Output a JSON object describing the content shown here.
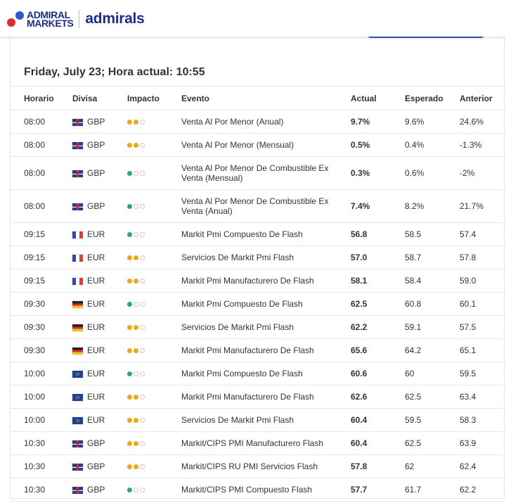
{
  "brand": {
    "logo_line1": "ADMIRAL",
    "logo_line2": "MARKETS",
    "logo_admirals": "admirals",
    "colors": {
      "primary": "#1b2d86",
      "accent_red": "#e12a2b",
      "accent_blue": "#2f55d4"
    }
  },
  "page": {
    "title": "Friday, July 23; Hora actual: 10:55"
  },
  "table": {
    "headers": {
      "time": "Horario",
      "currency": "Divisa",
      "impact": "Impacto",
      "event": "Evento",
      "actual": "Actual",
      "expected": "Esperado",
      "previous": "Anterior"
    },
    "rows": [
      {
        "time": "08:00",
        "flag": "gb",
        "currency": "GBP",
        "impact": {
          "level": 2,
          "color": "orange"
        },
        "event": "Venta Al Por Menor (Anual)",
        "actual": "9.7%",
        "actual_trend": "up",
        "expected": "9.6%",
        "previous": "24.6%"
      },
      {
        "time": "08:00",
        "flag": "gb",
        "currency": "GBP",
        "impact": {
          "level": 2,
          "color": "orange"
        },
        "event": "Venta Al Por Menor (Mensual)",
        "actual": "0.5%",
        "actual_trend": "up",
        "expected": "0.4%",
        "previous": "-1.3%"
      },
      {
        "time": "08:00",
        "flag": "gb",
        "currency": "GBP",
        "impact": {
          "level": 1,
          "color": "green"
        },
        "event": "Venta Al Por Menor De Combustible Ex Venta (Mensual)",
        "actual": "0.3%",
        "actual_trend": "down",
        "expected": "0.6%",
        "previous": "-2%"
      },
      {
        "time": "08:00",
        "flag": "gb",
        "currency": "GBP",
        "impact": {
          "level": 1,
          "color": "green"
        },
        "event": "Venta Al Por Menor De Combustible Ex Venta (Anual)",
        "actual": "7.4%",
        "actual_trend": "down",
        "expected": "8.2%",
        "previous": "21.7%"
      },
      {
        "time": "09:15",
        "flag": "fr",
        "currency": "EUR",
        "impact": {
          "level": 1,
          "color": "green"
        },
        "event": "Markit Pmi Compuesto De Flash",
        "actual": "56.8",
        "actual_trend": "down",
        "expected": "58.5",
        "previous": "57.4"
      },
      {
        "time": "09:15",
        "flag": "fr",
        "currency": "EUR",
        "impact": {
          "level": 2,
          "color": "orange"
        },
        "event": "Servicios De Markit Pmi Flash",
        "actual": "57.0",
        "actual_trend": "down",
        "expected": "58.7",
        "previous": "57.8"
      },
      {
        "time": "09:15",
        "flag": "fr",
        "currency": "EUR",
        "impact": {
          "level": 2,
          "color": "orange"
        },
        "event": "Markit Pmi Manufacturero De Flash",
        "actual": "58.1",
        "actual_trend": "down",
        "expected": "58.4",
        "previous": "59.0"
      },
      {
        "time": "09:30",
        "flag": "de",
        "currency": "EUR",
        "impact": {
          "level": 1,
          "color": "green"
        },
        "event": "Markit Pmi Compuesto De Flash",
        "actual": "62.5",
        "actual_trend": "up",
        "expected": "60.8",
        "previous": "60.1"
      },
      {
        "time": "09:30",
        "flag": "de",
        "currency": "EUR",
        "impact": {
          "level": 2,
          "color": "orange"
        },
        "event": "Servicios De Markit Pmi Flash",
        "actual": "62.2",
        "actual_trend": "up",
        "expected": "59.1",
        "previous": "57.5"
      },
      {
        "time": "09:30",
        "flag": "de",
        "currency": "EUR",
        "impact": {
          "level": 2,
          "color": "orange"
        },
        "event": "Markit Pmi Manufacturero De Flash",
        "actual": "65.6",
        "actual_trend": "up",
        "expected": "64.2",
        "previous": "65.1"
      },
      {
        "time": "10:00",
        "flag": "eu",
        "currency": "EUR",
        "impact": {
          "level": 1,
          "color": "green"
        },
        "event": "Markit Pmi Compuesto De Flash",
        "actual": "60.6",
        "actual_trend": "up",
        "expected": "60",
        "previous": "59.5"
      },
      {
        "time": "10:00",
        "flag": "eu",
        "currency": "EUR",
        "impact": {
          "level": 2,
          "color": "orange"
        },
        "event": "Markit Pmi Manufacturero De Flash",
        "actual": "62.6",
        "actual_trend": "up",
        "expected": "62.5",
        "previous": "63.4"
      },
      {
        "time": "10:00",
        "flag": "eu",
        "currency": "EUR",
        "impact": {
          "level": 2,
          "color": "orange"
        },
        "event": "Servicios De Markit Pmi Flash",
        "actual": "60.4",
        "actual_trend": "up",
        "expected": "59.5",
        "previous": "58.3"
      },
      {
        "time": "10:30",
        "flag": "gb",
        "currency": "GBP",
        "impact": {
          "level": 2,
          "color": "orange"
        },
        "event": "Markit/CIPS PMI Manufacturero Flash",
        "actual": "60.4",
        "actual_trend": "down",
        "expected": "62.5",
        "previous": "63.9"
      },
      {
        "time": "10:30",
        "flag": "gb",
        "currency": "GBP",
        "impact": {
          "level": 2,
          "color": "orange"
        },
        "event": "Markit/CIPS RU PMI Servicios Flash",
        "actual": "57.8",
        "actual_trend": "down",
        "expected": "62",
        "previous": "62.4"
      },
      {
        "time": "10:30",
        "flag": "gb",
        "currency": "GBP",
        "impact": {
          "level": 1,
          "color": "green"
        },
        "event": "Markit/CIPS PMI Compuesto Flash",
        "actual": "57.7",
        "actual_trend": "down",
        "expected": "61.7",
        "previous": "62.2"
      }
    ]
  }
}
